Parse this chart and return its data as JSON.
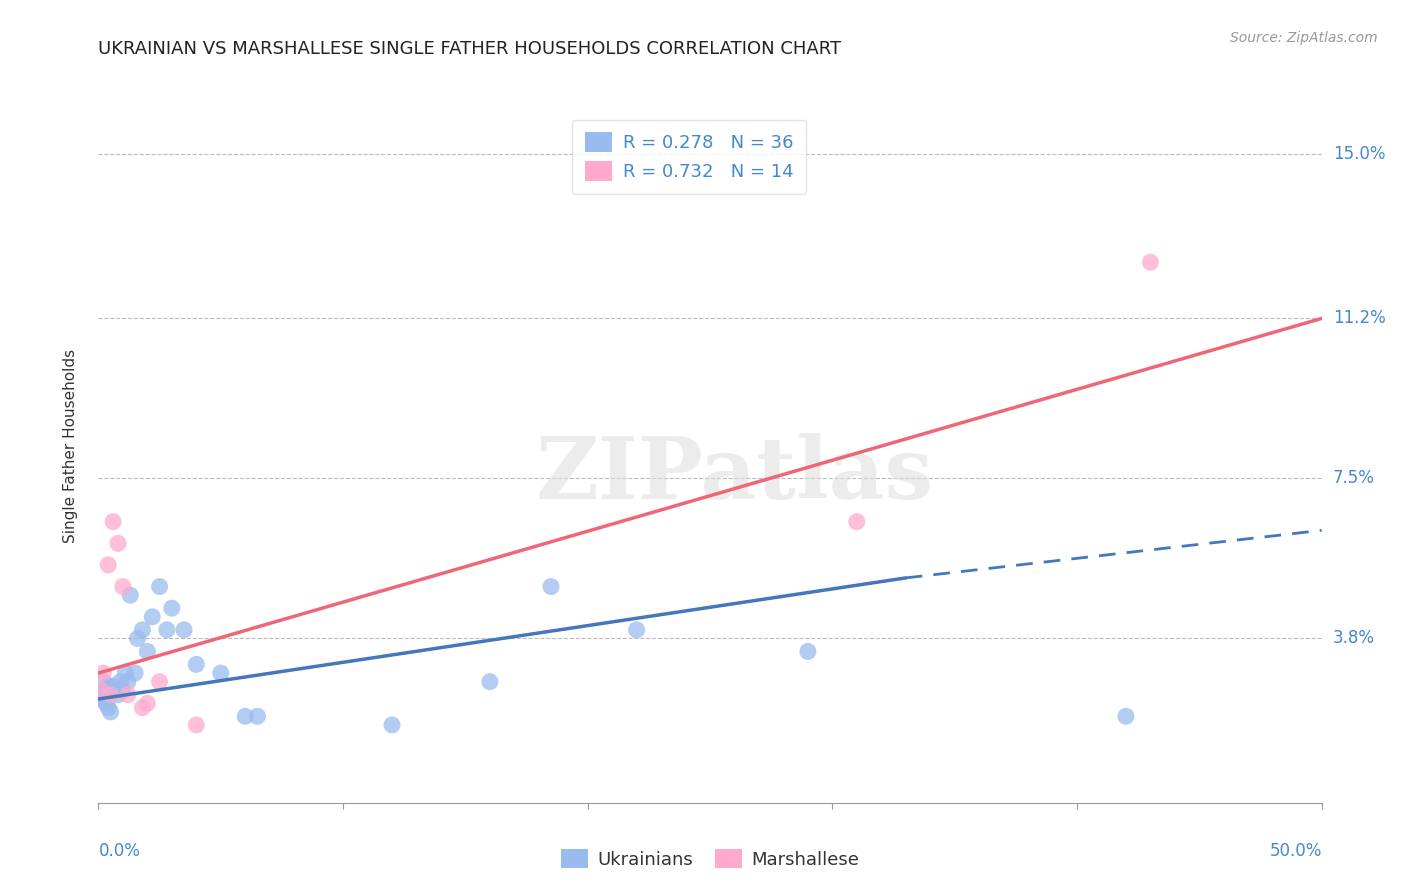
{
  "title": "UKRAINIAN VS MARSHALLESE SINGLE FATHER HOUSEHOLDS CORRELATION CHART",
  "source": "Source: ZipAtlas.com",
  "ylabel": "Single Father Households",
  "ytick_labels": [
    "3.8%",
    "7.5%",
    "11.2%",
    "15.0%"
  ],
  "ytick_values": [
    0.038,
    0.075,
    0.112,
    0.15
  ],
  "xlim": [
    0.0,
    0.5
  ],
  "ylim": [
    0.0,
    0.165
  ],
  "blue_scatter_x": [
    0.001,
    0.002,
    0.002,
    0.003,
    0.003,
    0.004,
    0.004,
    0.005,
    0.005,
    0.006,
    0.007,
    0.008,
    0.009,
    0.01,
    0.011,
    0.012,
    0.013,
    0.015,
    0.016,
    0.018,
    0.02,
    0.022,
    0.025,
    0.028,
    0.03,
    0.035,
    0.04,
    0.05,
    0.06,
    0.065,
    0.12,
    0.16,
    0.185,
    0.22,
    0.29,
    0.42
  ],
  "blue_scatter_y": [
    0.025,
    0.028,
    0.024,
    0.026,
    0.023,
    0.027,
    0.022,
    0.025,
    0.021,
    0.027,
    0.026,
    0.025,
    0.028,
    0.026,
    0.03,
    0.028,
    0.048,
    0.03,
    0.038,
    0.04,
    0.035,
    0.043,
    0.05,
    0.04,
    0.045,
    0.04,
    0.032,
    0.03,
    0.02,
    0.02,
    0.018,
    0.028,
    0.05,
    0.04,
    0.035,
    0.02
  ],
  "pink_scatter_x": [
    0.001,
    0.002,
    0.004,
    0.005,
    0.006,
    0.008,
    0.01,
    0.012,
    0.018,
    0.02,
    0.025,
    0.04,
    0.31,
    0.43
  ],
  "pink_scatter_y": [
    0.026,
    0.03,
    0.055,
    0.025,
    0.065,
    0.06,
    0.05,
    0.025,
    0.022,
    0.023,
    0.028,
    0.018,
    0.065,
    0.125
  ],
  "blue_line": [
    0.0,
    0.024,
    0.33,
    0.052
  ],
  "blue_dash": [
    0.33,
    0.052,
    0.5,
    0.063
  ],
  "pink_line": [
    0.0,
    0.03,
    0.5,
    0.112
  ],
  "blue_color": "#4477bb",
  "pink_color": "#ee6677",
  "blue_scatter_color": "#99bbee",
  "pink_scatter_color": "#ffaacc",
  "watermark_text": "ZIPatlas",
  "watermark_color": "#dddddd",
  "grid_color": "#bbbbbb",
  "background_color": "#ffffff",
  "title_fontsize": 13,
  "source_fontsize": 10,
  "ylabel_fontsize": 11,
  "legend_fontsize": 13,
  "tick_fontsize": 12,
  "legend_r_color": "#000000",
  "legend_n_color": "#4488cc"
}
